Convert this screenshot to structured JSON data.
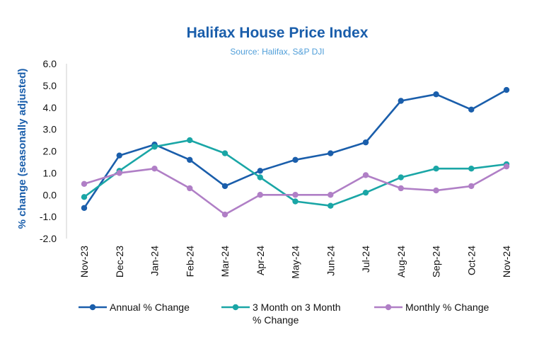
{
  "chart_data": {
    "type": "line",
    "title": "Halifax House Price Index",
    "subtitle": "Source: Halifax, S&P DJI",
    "ylabel": "% change (seasonally adjusted)",
    "xlabel": "",
    "ylim": [
      -2.0,
      6.0
    ],
    "yticks": [
      "-2.0",
      "-1.0",
      "0.0",
      "1.0",
      "2.0",
      "3.0",
      "4.0",
      "5.0",
      "6.0"
    ],
    "categories": [
      "Nov-23",
      "Dec-23",
      "Jan-24",
      "Feb-24",
      "Mar-24",
      "Apr-24",
      "May-24",
      "Jun-24",
      "Jul-24",
      "Aug-24",
      "Sep-24",
      "Oct-24",
      "Nov-24"
    ],
    "legend_position": "bottom",
    "series": [
      {
        "name": "Annual % Change",
        "legend_lines": [
          "Annual % Change"
        ],
        "color": "#1a5eab",
        "values": [
          -0.6,
          1.8,
          2.3,
          1.6,
          0.4,
          1.1,
          1.6,
          1.9,
          2.4,
          4.3,
          4.6,
          3.9,
          4.8
        ]
      },
      {
        "name": "3 Month on 3 Month % Change",
        "legend_lines": [
          "3 Month on 3 Month",
          "% Change"
        ],
        "color": "#1aa6a6",
        "values": [
          -0.1,
          1.1,
          2.2,
          2.5,
          1.9,
          0.8,
          -0.3,
          -0.5,
          0.1,
          0.8,
          1.2,
          1.2,
          1.4
        ]
      },
      {
        "name": "Monthly % Change",
        "legend_lines": [
          "Monthly % Change"
        ],
        "color": "#b07fc6",
        "values": [
          0.5,
          1.0,
          1.2,
          0.3,
          -0.9,
          0.0,
          0.0,
          0.0,
          0.9,
          0.3,
          0.2,
          0.4,
          1.3
        ]
      }
    ]
  }
}
